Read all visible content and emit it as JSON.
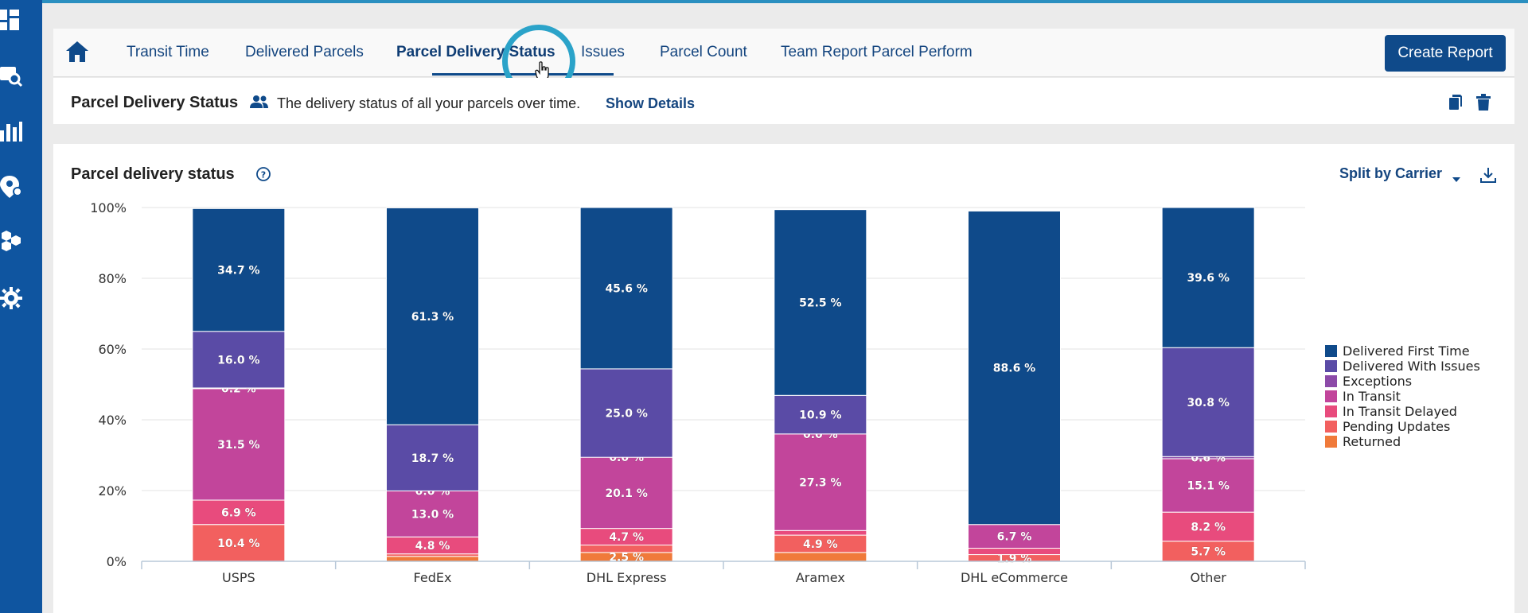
{
  "tabs": {
    "home_icon": "home-icon",
    "items": [
      {
        "label": "Transit Time"
      },
      {
        "label": "Delivered Parcels"
      },
      {
        "label": "Parcel Delivery Status"
      },
      {
        "label": "Issues"
      },
      {
        "label": "Parcel Count"
      },
      {
        "label": "Team Report Parcel Perform"
      }
    ],
    "active_index": 2,
    "create_report_label": "Create Report"
  },
  "header": {
    "title": "Parcel Delivery Status",
    "description": "The delivery status of all your parcels over time.",
    "show_details_label": "Show Details"
  },
  "chart_card": {
    "title": "Parcel delivery status",
    "split_label": "Split by Carrier"
  },
  "colors": {
    "brand": "#0f4a8a",
    "rail": "#0f55a0",
    "highlight_ring": "#2ba3c9"
  },
  "chart_data": {
    "type": "bar",
    "stacked": true,
    "percent": true,
    "categories": [
      "USPS",
      "FedEx",
      "DHL Express",
      "Aramex",
      "DHL eCommerce",
      "Other"
    ],
    "ylim": [
      0,
      100
    ],
    "yticks": [
      "0%",
      "20%",
      "40%",
      "60%",
      "80%",
      "100%"
    ],
    "grid": true,
    "legend_position": "right",
    "series": [
      {
        "name": "Returned",
        "color": "#f07a3a",
        "values": [
          0.0,
          1.4,
          2.5,
          2.5,
          0.0,
          0.0
        ],
        "labels": [
          "",
          "",
          "2.5 %",
          "",
          "",
          ""
        ]
      },
      {
        "name": "Pending Updates",
        "color": "#f2605f",
        "values": [
          10.4,
          0.7,
          2.1,
          4.9,
          1.9,
          5.7
        ],
        "labels": [
          "10.4 %",
          "",
          "",
          "4.9 %",
          "1.9 %",
          "5.7 %"
        ]
      },
      {
        "name": "In Transit Delayed",
        "color": "#e84b7d",
        "values": [
          6.9,
          4.8,
          4.7,
          1.3,
          1.8,
          8.2
        ],
        "labels": [
          "6.9 %",
          "4.8 %",
          "4.7 %",
          "",
          "",
          "8.2 %"
        ]
      },
      {
        "name": "In Transit",
        "color": "#c2459b",
        "values": [
          31.5,
          13.0,
          20.1,
          27.3,
          6.7,
          15.1
        ],
        "labels": [
          "31.5 %",
          "13.0 %",
          "20.1 %",
          "27.3 %",
          "6.7 %",
          "15.1 %"
        ]
      },
      {
        "name": "Exceptions",
        "color": "#8c4aa8",
        "values": [
          0.2,
          0.0,
          0.0,
          0.0,
          0.0,
          0.6
        ],
        "labels": [
          "0.2 %",
          "0.0 %",
          "0.0 %",
          "0.0 %",
          "",
          "0.6 %"
        ]
      },
      {
        "name": "Delivered With Issues",
        "color": "#5a4ba6",
        "values": [
          16.0,
          18.7,
          25.0,
          10.9,
          0.0,
          30.8
        ],
        "labels": [
          "16.0 %",
          "18.7 %",
          "25.0 %",
          "10.9 %",
          "",
          "30.8 %"
        ]
      },
      {
        "name": "Delivered First Time",
        "color": "#0f4a8a",
        "values": [
          34.7,
          61.3,
          45.6,
          52.5,
          88.6,
          39.6
        ],
        "labels": [
          "34.7 %",
          "61.3 %",
          "45.6 %",
          "52.5 %",
          "88.6 %",
          "39.6 %"
        ]
      }
    ],
    "legend_order": [
      "Delivered First Time",
      "Delivered With Issues",
      "Exceptions",
      "In Transit",
      "In Transit Delayed",
      "Pending Updates",
      "Returned"
    ]
  }
}
